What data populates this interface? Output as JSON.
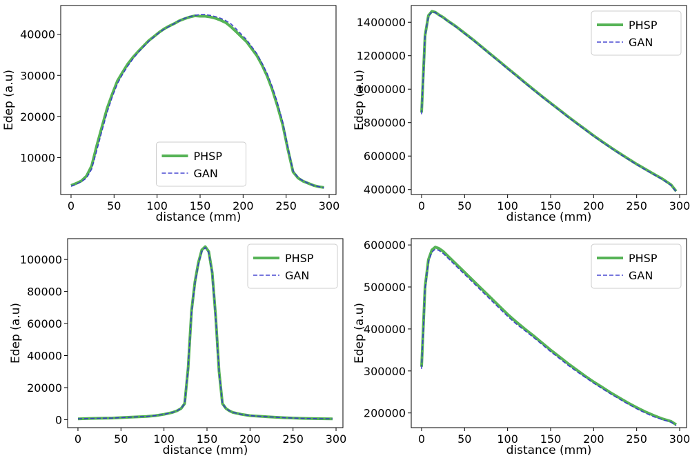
{
  "chart_data": [
    {
      "type": "line",
      "xlabel": "distance (mm)",
      "ylabel": "Edep (a.u)",
      "xlim": [
        -12,
        308
      ],
      "ylim": [
        1000,
        47000
      ],
      "xticks": [
        0,
        50,
        100,
        150,
        200,
        250,
        300
      ],
      "yticks": [
        10000,
        20000,
        30000,
        40000
      ],
      "legend_position": "lower-center",
      "series": [
        {
          "name": "PHSP",
          "color": "#2ca02c",
          "style": "solid",
          "x": [
            0,
            6,
            12,
            18,
            24,
            30,
            36,
            42,
            48,
            54,
            60,
            66,
            72,
            78,
            84,
            90,
            96,
            102,
            108,
            114,
            120,
            126,
            132,
            138,
            144,
            150,
            156,
            162,
            168,
            174,
            180,
            186,
            192,
            198,
            204,
            210,
            216,
            222,
            228,
            234,
            240,
            246,
            252,
            258,
            264,
            270,
            276,
            282,
            288,
            294
          ],
          "y": [
            3200,
            3700,
            4300,
            5500,
            8000,
            13000,
            17500,
            22000,
            25500,
            28700,
            30800,
            32800,
            34400,
            35800,
            37100,
            38400,
            39400,
            40400,
            41300,
            42000,
            42600,
            43300,
            43800,
            44200,
            44500,
            44400,
            44400,
            44200,
            43900,
            43400,
            42800,
            41800,
            40600,
            39400,
            38200,
            36500,
            34800,
            32500,
            29800,
            26500,
            22500,
            18000,
            12000,
            6500,
            5000,
            4200,
            3700,
            3200,
            2900,
            2700
          ]
        },
        {
          "name": "GAN",
          "color": "#3333cc",
          "style": "dashed",
          "x": [
            0,
            6,
            12,
            18,
            24,
            30,
            36,
            42,
            48,
            54,
            60,
            66,
            72,
            78,
            84,
            90,
            96,
            102,
            108,
            114,
            120,
            126,
            132,
            138,
            144,
            150,
            156,
            162,
            168,
            174,
            180,
            186,
            192,
            198,
            204,
            210,
            216,
            222,
            228,
            234,
            240,
            246,
            252,
            258,
            264,
            270,
            276,
            282,
            288,
            294
          ],
          "y": [
            3000,
            3500,
            4100,
            5000,
            7200,
            11800,
            16500,
            21000,
            24800,
            28000,
            30300,
            32300,
            34000,
            35600,
            36900,
            38200,
            39300,
            40300,
            41200,
            41900,
            42600,
            43300,
            43900,
            44300,
            44600,
            44800,
            44800,
            44600,
            44300,
            43900,
            43300,
            42500,
            41300,
            40000,
            38700,
            37000,
            35300,
            33000,
            30400,
            27200,
            23300,
            18700,
            12500,
            6800,
            5100,
            4300,
            3700,
            3200,
            2900,
            2700
          ]
        }
      ]
    },
    {
      "type": "line",
      "xlabel": "distance (mm)",
      "ylabel": "Edep (a.u)",
      "xlim": [
        -12,
        308
      ],
      "ylim": [
        370000,
        1500000
      ],
      "xticks": [
        0,
        50,
        100,
        150,
        200,
        250,
        300
      ],
      "yticks": [
        400000,
        600000,
        800000,
        1000000,
        1200000,
        1400000
      ],
      "legend_position": "top-right",
      "series": [
        {
          "name": "PHSP",
          "color": "#2ca02c",
          "style": "solid",
          "x": [
            0,
            4,
            8,
            12,
            16,
            20,
            25,
            30,
            40,
            50,
            60,
            70,
            80,
            90,
            100,
            110,
            120,
            130,
            140,
            150,
            160,
            170,
            180,
            190,
            200,
            210,
            220,
            230,
            240,
            250,
            260,
            270,
            280,
            290,
            296
          ],
          "y": [
            860000,
            1320000,
            1440000,
            1465000,
            1460000,
            1445000,
            1430000,
            1410000,
            1375000,
            1335000,
            1295000,
            1253000,
            1210000,
            1168000,
            1125000,
            1083000,
            1040000,
            998000,
            957000,
            917000,
            877000,
            837000,
            798000,
            760000,
            722000,
            686000,
            651000,
            617000,
            584000,
            552000,
            522000,
            492000,
            463000,
            428000,
            390000
          ]
        },
        {
          "name": "GAN",
          "color": "#3333cc",
          "style": "dashed",
          "x": [
            0,
            4,
            8,
            12,
            16,
            20,
            25,
            30,
            40,
            50,
            60,
            70,
            80,
            90,
            100,
            110,
            120,
            130,
            140,
            150,
            160,
            170,
            180,
            190,
            200,
            210,
            220,
            230,
            240,
            250,
            260,
            270,
            280,
            290,
            296
          ],
          "y": [
            850000,
            1315000,
            1437000,
            1462000,
            1458000,
            1443000,
            1428000,
            1408000,
            1372000,
            1332000,
            1292000,
            1250000,
            1207000,
            1165000,
            1122000,
            1080000,
            1037000,
            995000,
            954000,
            914000,
            874000,
            834000,
            795000,
            757000,
            719000,
            683000,
            648000,
            614000,
            581000,
            549000,
            519000,
            489000,
            460000,
            425000,
            386000
          ]
        }
      ]
    },
    {
      "type": "line",
      "xlabel": "distance (mm)",
      "ylabel": "Edep (a.u)",
      "xlim": [
        -12,
        308
      ],
      "ylim": [
        -5000,
        113000
      ],
      "xticks": [
        0,
        50,
        100,
        150,
        200,
        250,
        300
      ],
      "yticks": [
        0,
        20000,
        40000,
        60000,
        80000,
        100000
      ],
      "legend_position": "top-right",
      "series": [
        {
          "name": "PHSP",
          "color": "#2ca02c",
          "style": "solid",
          "x": [
            0,
            20,
            40,
            60,
            80,
            90,
            100,
            110,
            115,
            120,
            124,
            128,
            132,
            136,
            140,
            144,
            148,
            152,
            156,
            160,
            164,
            168,
            172,
            176,
            180,
            190,
            200,
            220,
            240,
            260,
            280,
            296
          ],
          "y": [
            500,
            800,
            1000,
            1500,
            2000,
            2500,
            3300,
            4500,
            5500,
            7000,
            10000,
            32000,
            68000,
            86000,
            98000,
            106000,
            108000,
            105000,
            92000,
            65000,
            30000,
            10000,
            7000,
            5500,
            4500,
            3300,
            2500,
            1800,
            1200,
            800,
            600,
            500
          ]
        },
        {
          "name": "GAN",
          "color": "#3333cc",
          "style": "dashed",
          "x": [
            0,
            20,
            40,
            60,
            80,
            90,
            100,
            110,
            115,
            120,
            124,
            128,
            132,
            136,
            140,
            144,
            148,
            152,
            156,
            160,
            164,
            168,
            172,
            176,
            180,
            190,
            200,
            220,
            240,
            260,
            280,
            296
          ],
          "y": [
            500,
            800,
            1000,
            1500,
            2000,
            2500,
            3300,
            4500,
            5500,
            7000,
            10000,
            32000,
            67000,
            85000,
            97000,
            105000,
            107500,
            104500,
            91500,
            64500,
            30000,
            10000,
            7000,
            5500,
            4500,
            3300,
            2500,
            1800,
            1200,
            800,
            600,
            500
          ]
        }
      ]
    },
    {
      "type": "line",
      "xlabel": "distance (mm)",
      "ylabel": "Edep (a.u)",
      "xlim": [
        -12,
        308
      ],
      "ylim": [
        165000,
        615000
      ],
      "xticks": [
        0,
        50,
        100,
        150,
        200,
        250,
        300
      ],
      "yticks": [
        200000,
        300000,
        400000,
        500000,
        600000
      ],
      "legend_position": "top-right",
      "series": [
        {
          "name": "PHSP",
          "color": "#2ca02c",
          "style": "solid",
          "x": [
            0,
            4,
            8,
            12,
            16,
            20,
            25,
            30,
            40,
            50,
            60,
            70,
            80,
            90,
            100,
            110,
            120,
            130,
            140,
            150,
            160,
            170,
            180,
            190,
            200,
            210,
            220,
            230,
            240,
            250,
            260,
            270,
            280,
            290,
            296
          ],
          "y": [
            310000,
            500000,
            565000,
            588000,
            595000,
            592000,
            585000,
            575000,
            555000,
            535000,
            515000,
            495000,
            475000,
            455000,
            435000,
            417000,
            400000,
            384000,
            367000,
            350000,
            334000,
            318000,
            303000,
            288000,
            274000,
            261000,
            248000,
            236000,
            224000,
            213000,
            203000,
            194000,
            186000,
            180000,
            172000
          ]
        },
        {
          "name": "GAN",
          "color": "#3333cc",
          "style": "dashed",
          "x": [
            0,
            4,
            8,
            12,
            16,
            20,
            25,
            30,
            40,
            50,
            60,
            70,
            80,
            90,
            100,
            110,
            120,
            130,
            140,
            150,
            160,
            170,
            180,
            190,
            200,
            210,
            220,
            230,
            240,
            250,
            260,
            270,
            280,
            290,
            296
          ],
          "y": [
            305000,
            495000,
            560000,
            583000,
            590000,
            587000,
            580000,
            570000,
            550000,
            530000,
            510000,
            490000,
            470000,
            450000,
            430000,
            412000,
            396000,
            380000,
            363000,
            346000,
            330000,
            314000,
            299000,
            285000,
            271000,
            258000,
            245000,
            233000,
            221000,
            210000,
            200000,
            191000,
            184000,
            178000,
            170000
          ]
        }
      ]
    }
  ]
}
